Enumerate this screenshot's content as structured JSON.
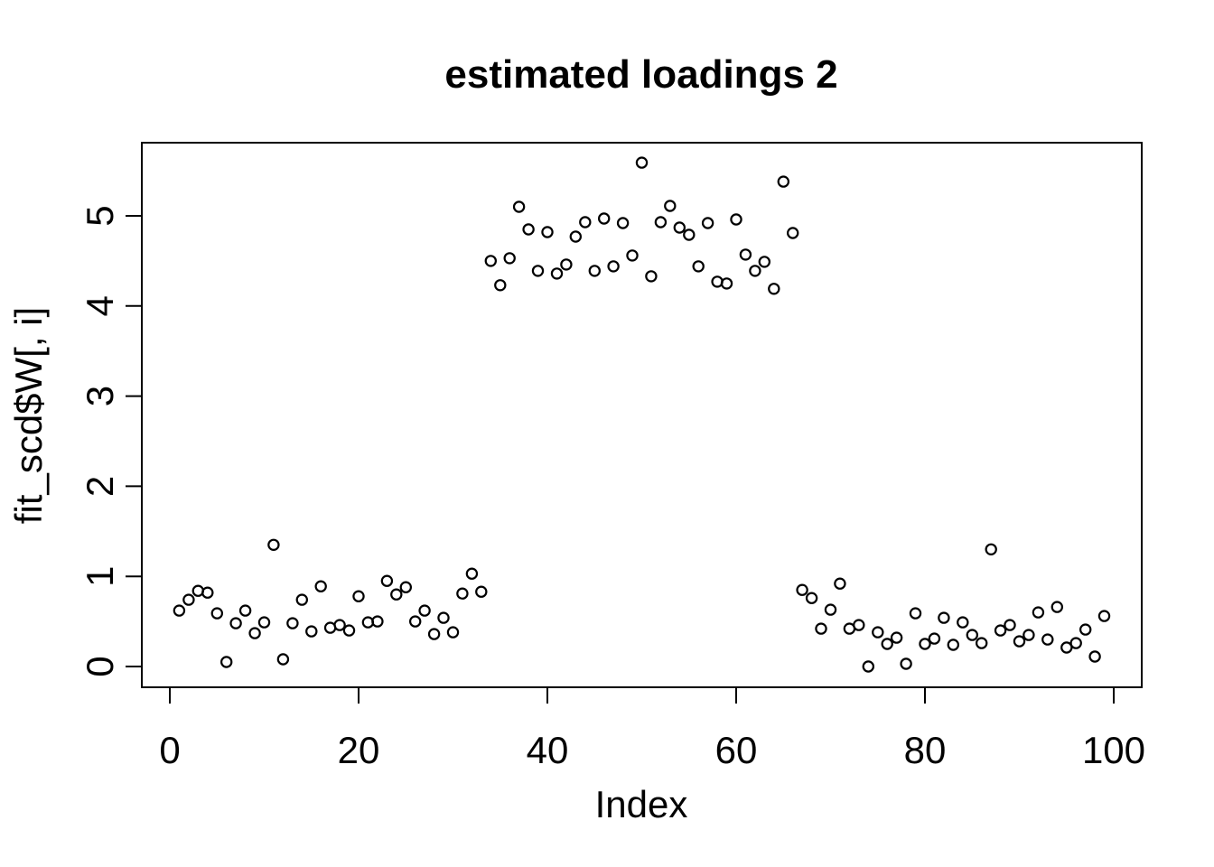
{
  "figure": {
    "title": "estimated loadings 2",
    "x_axis_label": "Index",
    "y_axis_label": "fit_scd$W[, i]",
    "foreground_color": "#000000",
    "background_color": "#ffffff"
  },
  "chart_data": {
    "type": "scatter",
    "title": "estimated loadings 2",
    "xlabel": "Index",
    "ylabel": "fit_scd$W[, i]",
    "marker": "open-circle",
    "grid": false,
    "legend": "none",
    "xlim": [
      -3,
      103
    ],
    "ylim": [
      -0.25,
      5.8
    ],
    "x_ticks": [
      0,
      20,
      40,
      60,
      80,
      100
    ],
    "y_ticks": [
      0,
      1,
      2,
      3,
      4,
      5
    ],
    "x": [
      1,
      2,
      3,
      4,
      5,
      6,
      7,
      8,
      9,
      10,
      11,
      12,
      13,
      14,
      15,
      16,
      17,
      18,
      19,
      20,
      21,
      22,
      23,
      24,
      25,
      26,
      27,
      28,
      29,
      30,
      31,
      32,
      33,
      34,
      35,
      36,
      37,
      38,
      39,
      40,
      41,
      42,
      43,
      44,
      45,
      46,
      47,
      48,
      49,
      50,
      51,
      52,
      53,
      54,
      55,
      56,
      57,
      58,
      59,
      60,
      61,
      62,
      63,
      64,
      65,
      66,
      67,
      68,
      69,
      70,
      71,
      72,
      73,
      74,
      75,
      76,
      77,
      78,
      79,
      80,
      81,
      82,
      83,
      84,
      85,
      86,
      87,
      88,
      89,
      90,
      91,
      92,
      93,
      94,
      95,
      96,
      97,
      98,
      99
    ],
    "y": [
      0.62,
      0.74,
      0.84,
      0.82,
      0.59,
      0.05,
      0.48,
      0.62,
      0.37,
      0.49,
      1.35,
      0.08,
      0.48,
      0.74,
      0.39,
      0.89,
      0.43,
      0.46,
      0.4,
      0.78,
      0.49,
      0.5,
      0.95,
      0.8,
      0.88,
      0.5,
      0.62,
      0.36,
      0.54,
      0.38,
      0.81,
      1.03,
      0.83,
      4.5,
      4.23,
      4.53,
      5.1,
      4.85,
      4.39,
      4.82,
      4.36,
      4.46,
      4.77,
      4.93,
      4.39,
      4.97,
      4.44,
      4.92,
      4.56,
      5.59,
      4.33,
      4.93,
      5.11,
      4.87,
      4.79,
      4.44,
      4.92,
      4.27,
      4.25,
      4.96,
      4.57,
      4.39,
      4.49,
      4.19,
      5.38,
      4.81,
      0.85,
      0.76,
      0.42,
      0.63,
      0.92,
      0.42,
      0.46,
      0.0,
      0.38,
      0.25,
      0.32,
      0.03,
      0.59,
      0.25,
      0.31,
      0.54,
      0.24,
      0.49,
      0.35,
      0.26,
      1.3,
      0.4,
      0.46,
      0.28,
      0.35,
      0.6,
      0.3,
      0.66,
      0.21,
      0.26,
      0.41,
      0.11,
      0.56
    ]
  }
}
